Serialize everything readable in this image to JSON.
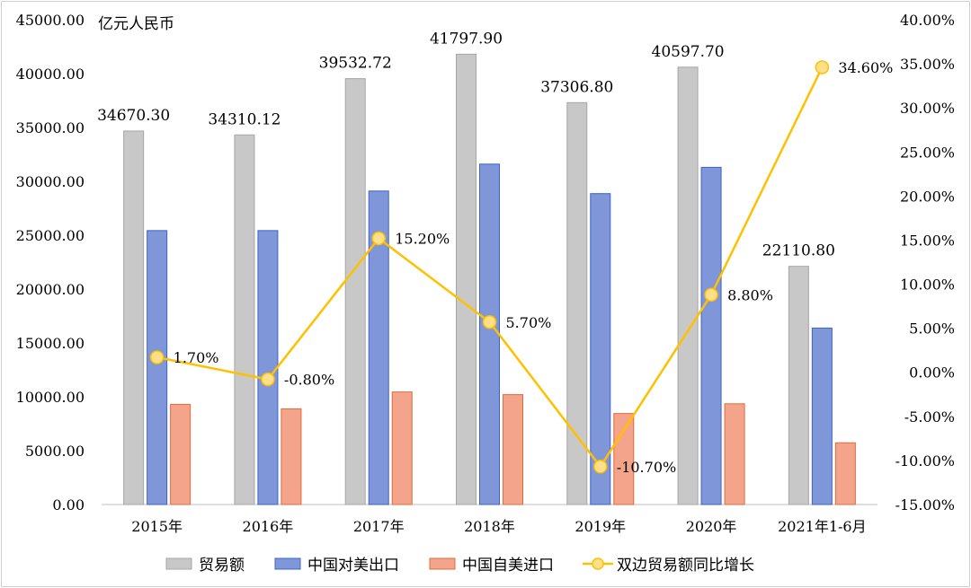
{
  "chart_data": {
    "type": "bar",
    "unit_label": "亿元人民币",
    "categories": [
      "2015年",
      "2016年",
      "2017年",
      "2018年",
      "2019年",
      "2020年",
      "2021年1-6月"
    ],
    "series": [
      {
        "name": "贸易额",
        "kind": "bar",
        "axis": "left",
        "color": "#c8c8c8",
        "values": [
          34670.3,
          34310.12,
          39532.72,
          41797.9,
          37306.8,
          40597.7,
          22110.8
        ],
        "labels": [
          "34670.30",
          "34310.12",
          "39532.72",
          "41797.90",
          "37306.80",
          "40597.70",
          "22110.80"
        ]
      },
      {
        "name": "中国对美出口",
        "kind": "bar",
        "axis": "left",
        "color": "#7f96d9",
        "values": [
          25430,
          25430,
          29100,
          31600,
          28860,
          31300,
          16380
        ]
      },
      {
        "name": "中国自美进口",
        "kind": "bar",
        "axis": "left",
        "color": "#f3a48a",
        "values": [
          9300,
          8880,
          10450,
          10200,
          8450,
          9350,
          5730
        ]
      },
      {
        "name": "双边贸易额同比增长",
        "kind": "line",
        "axis": "right",
        "color": "#ffc000",
        "values": [
          1.7,
          -0.8,
          15.2,
          5.7,
          -10.7,
          8.8,
          34.6
        ],
        "labels": [
          "1.70%",
          "-0.80%",
          "15.20%",
          "5.70%",
          "-10.70%",
          "8.80%",
          "34.60%"
        ]
      }
    ],
    "y_left": {
      "min": 0,
      "max": 45000,
      "step": 5000,
      "ticks": [
        "0.00",
        "5000.00",
        "10000.00",
        "15000.00",
        "20000.00",
        "25000.00",
        "30000.00",
        "35000.00",
        "40000.00",
        "45000.00"
      ]
    },
    "y_right": {
      "min": -15,
      "max": 40,
      "step": 5,
      "ticks": [
        "-15.00%",
        "-10.00%",
        "-5.00%",
        "0.00%",
        "5.00%",
        "10.00%",
        "15.00%",
        "20.00%",
        "25.00%",
        "30.00%",
        "35.00%",
        "40.00%"
      ]
    },
    "legend_position": "bottom",
    "grid": false
  }
}
